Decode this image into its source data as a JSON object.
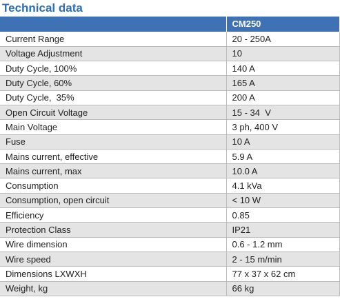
{
  "header": {
    "title": "Technical data"
  },
  "table": {
    "columns": [
      "CM250"
    ],
    "rows": [
      [
        "Current Range",
        "20 - 250A"
      ],
      [
        "Voltage Adjustment",
        "10"
      ],
      [
        "Duty Cycle, 100%",
        "140 A"
      ],
      [
        "Duty Cycle, 60%",
        "165 A"
      ],
      [
        "Duty Cycle,  35%",
        "200 A"
      ],
      [
        "Open Circuit Voltage",
        "15 - 34  V"
      ],
      [
        "Main Voltage",
        "3 ph, 400 V"
      ],
      [
        "Fuse",
        "10 A"
      ],
      [
        "Mains current, effective",
        "5.9 A"
      ],
      [
        "Mains current, max",
        "10.0 A"
      ],
      [
        "Consumption",
        "4.1 kVa"
      ],
      [
        "Consumption, open circuit",
        "< 10 W"
      ],
      [
        "Efficiency",
        "0.85"
      ],
      [
        "Protection Class",
        "IP21"
      ],
      [
        "Wire dimension",
        "0.6 - 1.2 mm"
      ],
      [
        "Wire speed",
        "2 - 15 m/min"
      ],
      [
        "Dimensions LXWXH",
        "77 x 37 x 62 cm"
      ],
      [
        "Weight, kg",
        "66 kg"
      ]
    ]
  }
}
